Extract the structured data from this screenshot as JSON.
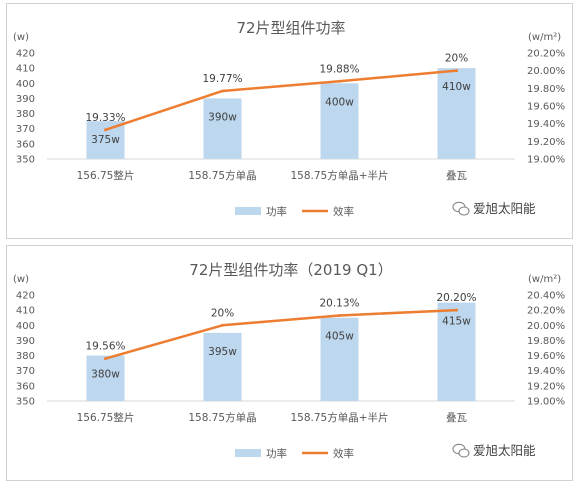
{
  "watermark": "爱旭太阳能",
  "chart_data": [
    {
      "type": "bar+line",
      "title": "72片型组件功率",
      "categories": [
        "156.75整片",
        "158.75方单晶",
        "158.75方单晶+半片",
        "叠瓦"
      ],
      "series": [
        {
          "name": "功率",
          "type": "bar",
          "axis": "left",
          "color": "#bdd7ee",
          "values": [
            375,
            390,
            400,
            410
          ],
          "labels": [
            "375w",
            "390w",
            "400w",
            "410w"
          ]
        },
        {
          "name": "效率",
          "type": "line",
          "axis": "right",
          "color": "#ed7d31",
          "values": [
            19.33,
            19.77,
            19.88,
            20.0
          ],
          "labels": [
            "19.33%",
            "19.77%",
            "19.88%",
            "20%"
          ]
        }
      ],
      "y_left": {
        "unit": "(w)",
        "ylim": [
          350,
          420
        ],
        "ticks": [
          "420",
          "410",
          "400",
          "390",
          "380",
          "370",
          "360",
          "350"
        ]
      },
      "y_right": {
        "unit": "(w/m²)",
        "ylim": [
          19.0,
          20.2
        ],
        "ticks": [
          "20.20%",
          "20.00%",
          "19.80%",
          "19.60%",
          "19.40%",
          "19.20%",
          "19.00%"
        ]
      },
      "grid": false,
      "legend": "bottom"
    },
    {
      "type": "bar+line",
      "title": "72片型组件功率（2019 Q1）",
      "categories": [
        "156.75整片",
        "158.75方单晶",
        "158.75方单晶+半片",
        "叠瓦"
      ],
      "series": [
        {
          "name": "功率",
          "type": "bar",
          "axis": "left",
          "color": "#bdd7ee",
          "values": [
            380,
            395,
            405,
            415
          ],
          "labels": [
            "380w",
            "395w",
            "405w",
            "415w"
          ]
        },
        {
          "name": "效率",
          "type": "line",
          "axis": "right",
          "color": "#ed7d31",
          "values": [
            19.56,
            20.0,
            20.13,
            20.2
          ],
          "labels": [
            "19.56%",
            "20%",
            "20.13%",
            "20.20%"
          ]
        }
      ],
      "y_left": {
        "unit": "(w)",
        "ylim": [
          350,
          420
        ],
        "ticks": [
          "420",
          "410",
          "400",
          "390",
          "380",
          "370",
          "360",
          "350"
        ]
      },
      "y_right": {
        "unit": "(w/m²)",
        "ylim": [
          19.0,
          20.4
        ],
        "ticks": [
          "20.40%",
          "20.20%",
          "20.00%",
          "19.80%",
          "19.60%",
          "19.40%",
          "19.20%",
          "19.00%"
        ]
      },
      "grid": false,
      "legend": "bottom"
    }
  ]
}
